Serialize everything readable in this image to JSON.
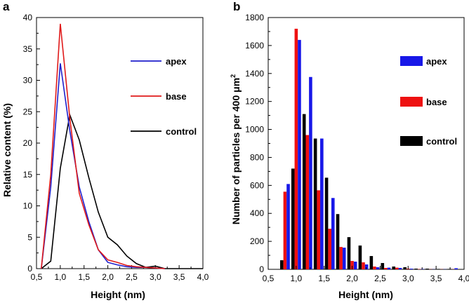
{
  "chart_data": [
    {
      "panel": "a",
      "type": "line",
      "xlabel": "Height (nm)",
      "ylabel": "Relative content (%)",
      "xlim": [
        0.5,
        4.0
      ],
      "ylim": [
        0,
        40
      ],
      "xticks": [
        "0,5",
        "1,0",
        "1,5",
        "2,0",
        "2,5",
        "3,0",
        "3,5",
        "4,0"
      ],
      "yticks": [
        "0",
        "5",
        "10",
        "15",
        "20",
        "25",
        "30",
        "35",
        "40"
      ],
      "legend_position": "right",
      "series": [
        {
          "name": "apex",
          "color": "#1f1fcc",
          "x": [
            0.6,
            0.8,
            1.0,
            1.2,
            1.4,
            1.6,
            1.8,
            2.0,
            2.2,
            2.4,
            2.6,
            2.8,
            3.0,
            3.2
          ],
          "y": [
            0,
            13,
            32.7,
            22,
            13,
            7.5,
            3,
            1,
            0.6,
            0.3,
            0.2,
            0.2,
            0.1,
            0
          ]
        },
        {
          "name": "base",
          "color": "#e01a1a",
          "x": [
            0.6,
            0.8,
            1.0,
            1.2,
            1.4,
            1.6,
            1.8,
            2.0,
            2.2,
            2.4,
            2.6,
            2.8,
            3.0,
            3.2
          ],
          "y": [
            0,
            15,
            39,
            24,
            12,
            7,
            3,
            1.4,
            1,
            0.5,
            0.3,
            0.2,
            0.1,
            0
          ]
        },
        {
          "name": "control",
          "color": "#000000",
          "x": [
            0.6,
            0.8,
            1.0,
            1.2,
            1.4,
            1.6,
            1.8,
            2.0,
            2.2,
            2.4,
            2.6,
            2.8,
            3.0,
            3.2,
            3.4,
            3.6,
            3.8,
            4.0
          ],
          "y": [
            0,
            1.2,
            16,
            24.5,
            20.5,
            14.5,
            9,
            5,
            3.8,
            2,
            0.8,
            0.2,
            0.4,
            0,
            0,
            0,
            0,
            0
          ]
        }
      ]
    },
    {
      "panel": "b",
      "type": "bar",
      "xlabel": "Height (nm)",
      "ylabel_main": "Number of particles per 400 μm",
      "ylabel_sup": "2",
      "xlim": [
        0.5,
        4.0
      ],
      "ylim": [
        0,
        1800
      ],
      "xticks": [
        "0,5",
        "1,0",
        "1,5",
        "2,0",
        "2,5",
        "3,0",
        "3,5",
        "4,0"
      ],
      "yticks": [
        "0",
        "200",
        "400",
        "600",
        "800",
        "1000",
        "1200",
        "1400",
        "1600",
        "1800"
      ],
      "legend_position": "right",
      "x": [
        0.8,
        1.0,
        1.2,
        1.4,
        1.6,
        1.8,
        2.0,
        2.2,
        2.4,
        2.6,
        2.8,
        3.0,
        3.2,
        3.4,
        3.6,
        3.8
      ],
      "series": [
        {
          "name": "control",
          "color": "#000000",
          "values": [
            65,
            720,
            1110,
            935,
            655,
            395,
            230,
            170,
            95,
            45,
            20,
            15,
            5,
            5,
            3,
            3
          ]
        },
        {
          "name": "base",
          "color": "#ee1111",
          "values": [
            555,
            1720,
            960,
            565,
            290,
            160,
            60,
            50,
            20,
            10,
            12,
            5,
            2,
            1,
            1,
            1
          ]
        },
        {
          "name": "apex",
          "color": "#1818e8",
          "values": [
            610,
            1640,
            1375,
            935,
            510,
            155,
            55,
            35,
            15,
            12,
            10,
            5,
            3,
            1,
            1,
            8
          ]
        }
      ]
    }
  ]
}
